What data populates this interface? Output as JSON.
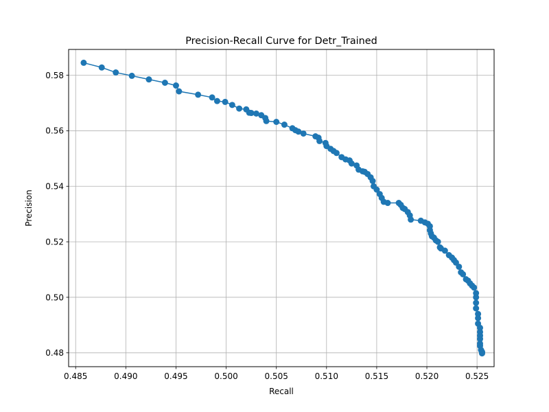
{
  "chart_data": {
    "type": "line",
    "title": "Precision-Recall Curve for Detr_Trained",
    "xlabel": "Recall",
    "ylabel": "Precision",
    "xlim": [
      0.4843,
      0.5267
    ],
    "ylim": [
      0.475,
      0.5893
    ],
    "xticks": [
      0.485,
      0.49,
      0.495,
      0.5,
      0.505,
      0.51,
      0.515,
      0.52,
      0.525
    ],
    "xtick_labels": [
      "0.485",
      "0.490",
      "0.495",
      "0.500",
      "0.505",
      "0.510",
      "0.515",
      "0.520",
      "0.525"
    ],
    "yticks": [
      0.48,
      0.5,
      0.52,
      0.54,
      0.56,
      0.58
    ],
    "ytick_labels": [
      "0.48",
      "0.50",
      "0.52",
      "0.54",
      "0.56",
      "0.58"
    ],
    "grid": true,
    "marker": "circle",
    "color": "#1f77b4",
    "series": [
      {
        "x": [
          0.4858,
          0.4876,
          0.489,
          0.4906,
          0.4923,
          0.4939,
          0.495,
          0.4953,
          0.4972,
          0.4986,
          0.4991,
          0.4999,
          0.5006,
          0.5013,
          0.502,
          0.5023,
          0.5025,
          0.503,
          0.5035,
          0.5039,
          0.504,
          0.505,
          0.5058,
          0.5066,
          0.5069,
          0.5072,
          0.5077,
          0.5089,
          0.5092,
          0.5093,
          0.5099,
          0.51,
          0.5104,
          0.5107,
          0.511,
          0.5115,
          0.5119,
          0.5123,
          0.5125,
          0.513,
          0.5132,
          0.5136,
          0.5138,
          0.5141,
          0.5144,
          0.5146,
          0.5147,
          0.515,
          0.5153,
          0.5155,
          0.5157,
          0.5161,
          0.5172,
          0.5174,
          0.5176,
          0.5178,
          0.5181,
          0.5183,
          0.5184,
          0.5194,
          0.5198,
          0.5201,
          0.5203,
          0.5203,
          0.5204,
          0.5205,
          0.5207,
          0.5209,
          0.5211,
          0.5213,
          0.5214,
          0.5218,
          0.5222,
          0.5225,
          0.5227,
          0.5229,
          0.5232,
          0.5234,
          0.5236,
          0.5239,
          0.5241,
          0.5243,
          0.5245,
          0.5247,
          0.5249,
          0.5249,
          0.5249,
          0.5249,
          0.5251,
          0.5251,
          0.5251,
          0.5253,
          0.5253,
          0.5253,
          0.5253,
          0.5253,
          0.5253,
          0.5254,
          0.5255,
          0.5255,
          0.5255
        ],
        "y": [
          0.5845,
          0.5828,
          0.581,
          0.5798,
          0.5785,
          0.5773,
          0.5763,
          0.5742,
          0.573,
          0.572,
          0.5707,
          0.5704,
          0.5693,
          0.568,
          0.5677,
          0.5665,
          0.5664,
          0.5662,
          0.5656,
          0.5646,
          0.5635,
          0.5632,
          0.5622,
          0.5609,
          0.5602,
          0.5597,
          0.559,
          0.558,
          0.5575,
          0.5563,
          0.5556,
          0.5545,
          0.5535,
          0.5527,
          0.552,
          0.5505,
          0.5497,
          0.5493,
          0.5482,
          0.5475,
          0.546,
          0.5454,
          0.5452,
          0.5444,
          0.5432,
          0.5419,
          0.54,
          0.5388,
          0.5372,
          0.5358,
          0.5344,
          0.534,
          0.534,
          0.5333,
          0.5322,
          0.5318,
          0.5307,
          0.5295,
          0.528,
          0.5276,
          0.527,
          0.5265,
          0.5256,
          0.5242,
          0.523,
          0.522,
          0.5215,
          0.5205,
          0.52,
          0.518,
          0.5176,
          0.5168,
          0.5152,
          0.5143,
          0.5134,
          0.5125,
          0.511,
          0.509,
          0.5083,
          0.5065,
          0.506,
          0.505,
          0.5042,
          0.5035,
          0.5015,
          0.5,
          0.498,
          0.496,
          0.494,
          0.4925,
          0.4905,
          0.489,
          0.4875,
          0.4862,
          0.485,
          0.4833,
          0.4825,
          0.481,
          0.4803,
          0.48,
          0.4798
        ]
      }
    ]
  }
}
